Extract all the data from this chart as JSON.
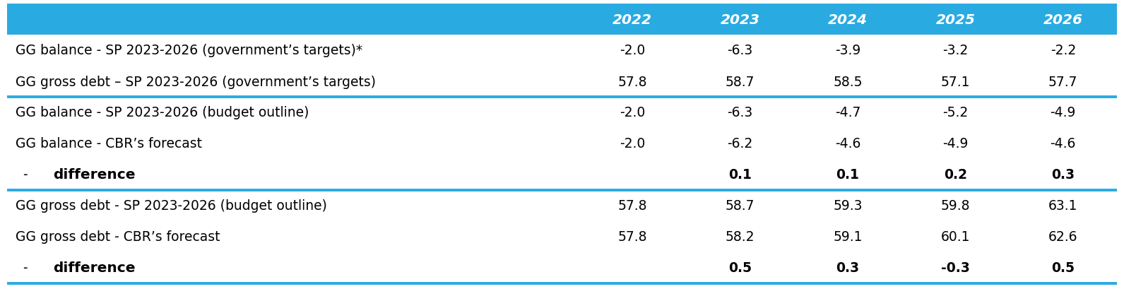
{
  "header_bg": "#29ABE2",
  "header_text_color": "#FFFFFF",
  "header_years": [
    "2022",
    "2023",
    "2024",
    "2025",
    "2026"
  ],
  "rows": [
    {
      "label": "GG balance - SP 2023-2026 (government’s targets)*",
      "values": [
        "-2.0",
        "-6.3",
        "-3.9",
        "-3.2",
        "-2.2"
      ],
      "bold": false,
      "diff_row": false,
      "section_break_below": false
    },
    {
      "label": "GG gross debt – SP 2023-2026 (government’s targets)",
      "values": [
        "57.8",
        "58.7",
        "58.5",
        "57.1",
        "57.7"
      ],
      "bold": false,
      "diff_row": false,
      "section_break_below": true
    },
    {
      "label": "GG balance - SP 2023-2026 (budget outline)",
      "values": [
        "-2.0",
        "-6.3",
        "-4.7",
        "-5.2",
        "-4.9"
      ],
      "bold": false,
      "diff_row": false,
      "section_break_below": false
    },
    {
      "label": "GG balance - CBR’s forecast",
      "values": [
        "-2.0",
        "-6.2",
        "-4.6",
        "-4.9",
        "-4.6"
      ],
      "bold": false,
      "diff_row": false,
      "section_break_below": false
    },
    {
      "label": "difference",
      "values": [
        "",
        "0.1",
        "0.1",
        "0.2",
        "0.3"
      ],
      "bold": true,
      "diff_row": true,
      "section_break_below": true
    },
    {
      "label": "GG gross debt - SP 2023-2026 (budget outline)",
      "values": [
        "57.8",
        "58.7",
        "59.3",
        "59.8",
        "63.1"
      ],
      "bold": false,
      "diff_row": false,
      "section_break_below": false
    },
    {
      "label": "GG gross debt - CBR’s forecast",
      "values": [
        "57.8",
        "58.2",
        "59.1",
        "60.1",
        "62.6"
      ],
      "bold": false,
      "diff_row": false,
      "section_break_below": false
    },
    {
      "label": "difference",
      "values": [
        "",
        "0.5",
        "0.3",
        "-0.3",
        "0.5"
      ],
      "bold": true,
      "diff_row": true,
      "section_break_below": false
    }
  ],
  "font_size": 13.5,
  "header_font_size": 14.5,
  "diff_label_font_size": 14.5
}
